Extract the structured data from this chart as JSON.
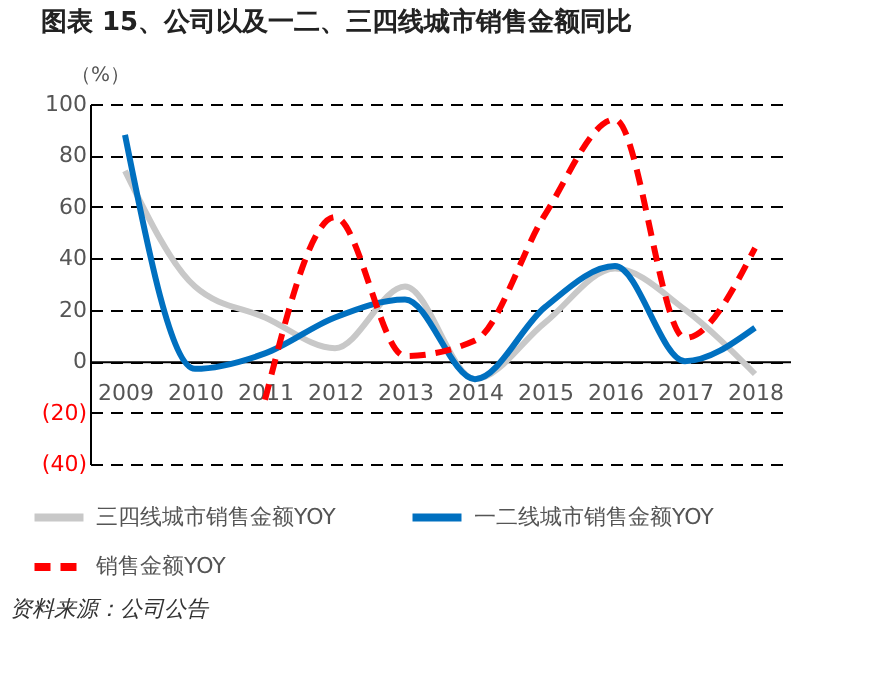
{
  "chart_data": {
    "type": "line",
    "title": "图表 15、公司以及一二、三四线城市销售金额同比",
    "ylabel": "（%）",
    "categories": [
      "2009",
      "2010",
      "2011",
      "2012",
      "2013",
      "2014",
      "2015",
      "2016",
      "2017",
      "2018"
    ],
    "series": [
      {
        "name": "三四线城市销售金额YOY",
        "color": "#c8c8c8",
        "line_style": "solid",
        "values": [
          74,
          29,
          17,
          5,
          29,
          -7,
          15,
          36,
          20,
          -5
        ]
      },
      {
        "name": "一二线城市销售金额YOY",
        "color": "#0070c0",
        "line_style": "solid",
        "values": [
          88,
          -3,
          3,
          17,
          24,
          -7,
          21,
          37,
          0,
          13
        ]
      },
      {
        "name": "销售金额YOY",
        "color": "#ff0000",
        "line_style": "dashed",
        "values": [
          null,
          null,
          -15,
          56,
          2,
          8,
          57,
          94,
          9,
          44
        ]
      }
    ],
    "ylim": [
      -40,
      100
    ],
    "yticks": [
      {
        "value": -40,
        "label": "(40)"
      },
      {
        "value": -20,
        "label": "(20)"
      },
      0,
      20,
      40,
      60,
      80,
      100
    ],
    "grid": "y",
    "legend": "bottom",
    "marker": "none",
    "annotations": [
      "资料来源：公司公告"
    ]
  }
}
